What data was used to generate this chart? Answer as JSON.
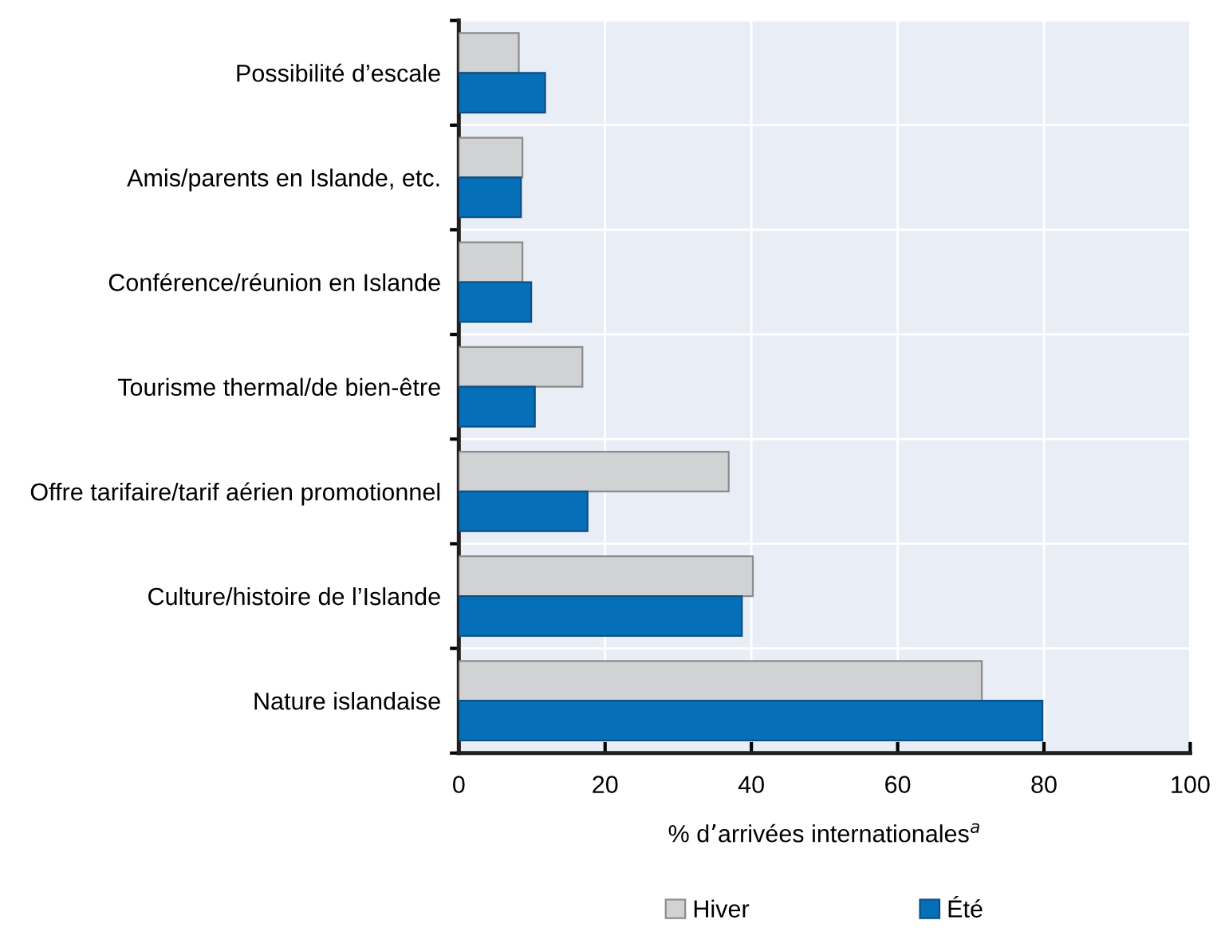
{
  "chart_data": {
    "type": "bar",
    "orientation": "horizontal",
    "categories": [
      "Possibilité d’escale",
      "Amis/parents en Islande, etc.",
      "Conférence/réunion en Islande",
      "Tourisme thermal/de bien-être",
      "Offre tarifaire/tarif aérien promotionnel",
      "Culture/histoire de l’Islande",
      "Nature islandaise"
    ],
    "series": [
      {
        "name": "Hiver",
        "color": "#d1d2d4",
        "values": [
          8.2,
          8.7,
          8.7,
          16.9,
          36.9,
          40.2,
          71.5
        ]
      },
      {
        "name": "Été",
        "color": "#0570b8",
        "values": [
          11.8,
          8.5,
          9.9,
          10.4,
          17.6,
          38.7,
          79.8
        ]
      }
    ],
    "xlabel": "% d’arrivées internationales$^{a}$",
    "xlim": [
      0,
      100
    ],
    "xticks": [
      0,
      20,
      40,
      60,
      80,
      100
    ],
    "grid": true,
    "legend": "bottom"
  }
}
